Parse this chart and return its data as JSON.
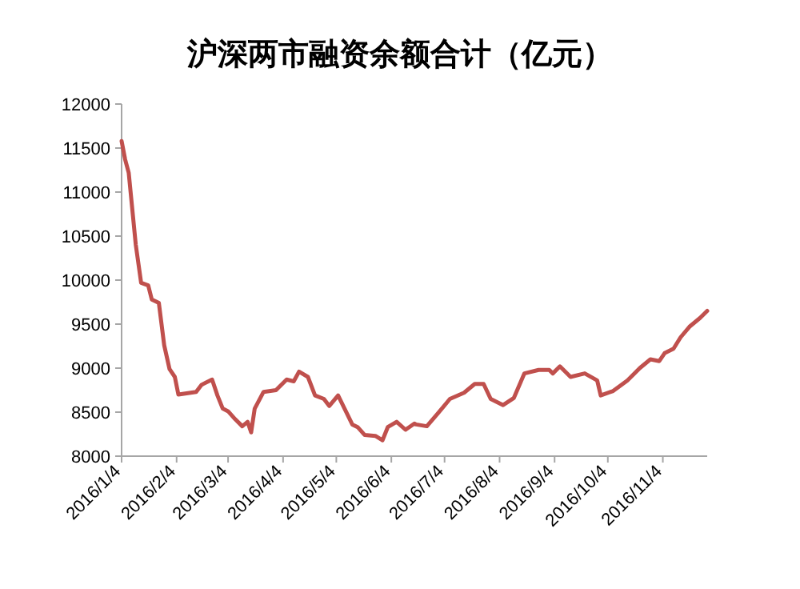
{
  "chart_data": {
    "type": "line",
    "title": "沪深两市融资余额合计（亿元）",
    "x": [
      "2016-01-04",
      "2016-01-06",
      "2016-01-08",
      "2016-01-12",
      "2016-01-15",
      "2016-01-19",
      "2016-01-21",
      "2016-01-25",
      "2016-01-28",
      "2016-01-31",
      "2016-02-03",
      "2016-02-05",
      "2016-02-15",
      "2016-02-18",
      "2016-02-24",
      "2016-02-27",
      "2016-03-01",
      "2016-03-04",
      "2016-03-08",
      "2016-03-12",
      "2016-03-15",
      "2016-03-17",
      "2016-03-19",
      "2016-03-24",
      "2016-03-31",
      "2016-04-06",
      "2016-04-10",
      "2016-04-13",
      "2016-04-18",
      "2016-04-22",
      "2016-04-27",
      "2016-04-30",
      "2016-05-05",
      "2016-05-13",
      "2016-05-16",
      "2016-05-20",
      "2016-05-26",
      "2016-05-30",
      "2016-06-02",
      "2016-06-07",
      "2016-06-12",
      "2016-06-17",
      "2016-06-18",
      "2016-06-24",
      "2016-06-30",
      "2016-07-07",
      "2016-07-15",
      "2016-07-21",
      "2016-07-26",
      "2016-07-30",
      "2016-08-06",
      "2016-08-12",
      "2016-08-18",
      "2016-08-26",
      "2016-09-01",
      "2016-09-03",
      "2016-09-07",
      "2016-09-13",
      "2016-09-21",
      "2016-09-28",
      "2016-09-30",
      "2016-10-07",
      "2016-10-15",
      "2016-10-22",
      "2016-10-28",
      "2016-11-02",
      "2016-11-05",
      "2016-11-10",
      "2016-11-14",
      "2016-11-19",
      "2016-11-25",
      "2016-11-29"
    ],
    "series": [
      {
        "color": "#c0504d",
        "values": [
          11580,
          11370,
          11220,
          10400,
          9970,
          9940,
          9780,
          9740,
          9260,
          8990,
          8900,
          8700,
          8730,
          8810,
          8870,
          8690,
          8540,
          8510,
          8420,
          8340,
          8390,
          8270,
          8540,
          8730,
          8750,
          8870,
          8850,
          8960,
          8900,
          8690,
          8650,
          8570,
          8690,
          8360,
          8330,
          8240,
          8230,
          8180,
          8330,
          8390,
          8300,
          8370,
          8360,
          8340,
          8480,
          8650,
          8720,
          8820,
          8820,
          8650,
          8580,
          8660,
          8940,
          8980,
          8980,
          8940,
          9020,
          8900,
          8940,
          8860,
          8690,
          8740,
          8860,
          9000,
          9100,
          9080,
          9170,
          9220,
          9350,
          9470,
          9570,
          9650
        ]
      }
    ],
    "xlim": [
      "2016-01-04",
      "2016-11-29"
    ],
    "xticks": [
      {
        "value": "2016-01-04",
        "label": "2016/1/4"
      },
      {
        "value": "2016-02-04",
        "label": "2016/2/4"
      },
      {
        "value": "2016-03-04",
        "label": "2016/3/4"
      },
      {
        "value": "2016-04-04",
        "label": "2016/4/4"
      },
      {
        "value": "2016-05-04",
        "label": "2016/5/4"
      },
      {
        "value": "2016-06-04",
        "label": "2016/6/4"
      },
      {
        "value": "2016-07-04",
        "label": "2016/7/4"
      },
      {
        "value": "2016-08-04",
        "label": "2016/8/4"
      },
      {
        "value": "2016-09-04",
        "label": "2016/9/4"
      },
      {
        "value": "2016-10-04",
        "label": "2016/10/4"
      },
      {
        "value": "2016-11-04",
        "label": "2016/11/4"
      }
    ],
    "ylim": [
      8000,
      12000
    ],
    "yticks": [
      8000,
      8500,
      9000,
      9500,
      10000,
      10500,
      11000,
      11500,
      12000
    ],
    "grid": false,
    "marker": "none",
    "line_style": "solid"
  }
}
